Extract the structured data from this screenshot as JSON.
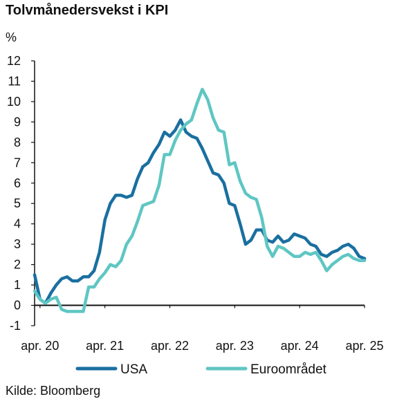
{
  "chart_data": {
    "type": "line",
    "title": "Tolvmånedersvekst i KPI",
    "ylabel": "%",
    "source": "Kilde: Bloomberg",
    "ylim": [
      -1,
      12
    ],
    "yticks": [
      "-1",
      "0",
      "1",
      "2",
      "3",
      "4",
      "5",
      "6",
      "7",
      "8",
      "9",
      "10",
      "11",
      "12"
    ],
    "xticks": [
      "apr. 20",
      "apr. 21",
      "apr. 22",
      "apr. 23",
      "apr. 24",
      "apr. 25"
    ],
    "xlim": [
      "2020-03",
      "2025-04"
    ],
    "grid": false,
    "legend_position": "bottom",
    "colors": {
      "USA": "#1a6fa0",
      "Euroområdet": "#5fc6c3",
      "axis": "#111111"
    },
    "series": [
      {
        "name": "USA",
        "x": [
          "2020-03",
          "2020-04",
          "2020-05",
          "2020-06",
          "2020-07",
          "2020-08",
          "2020-09",
          "2020-10",
          "2020-11",
          "2020-12",
          "2021-01",
          "2021-02",
          "2021-03",
          "2021-04",
          "2021-05",
          "2021-06",
          "2021-07",
          "2021-08",
          "2021-09",
          "2021-10",
          "2021-11",
          "2021-12",
          "2022-01",
          "2022-02",
          "2022-03",
          "2022-04",
          "2022-05",
          "2022-06",
          "2022-07",
          "2022-08",
          "2022-09",
          "2022-10",
          "2022-11",
          "2022-12",
          "2023-01",
          "2023-02",
          "2023-03",
          "2023-04",
          "2023-05",
          "2023-06",
          "2023-07",
          "2023-08",
          "2023-09",
          "2023-10",
          "2023-11",
          "2023-12",
          "2024-01",
          "2024-02",
          "2024-03",
          "2024-04",
          "2024-05",
          "2024-06",
          "2024-07",
          "2024-08",
          "2024-09",
          "2024-10",
          "2024-11",
          "2024-12",
          "2025-01",
          "2025-02",
          "2025-03",
          "2025-04"
        ],
        "y": [
          1.5,
          0.3,
          0.1,
          0.6,
          1.0,
          1.3,
          1.4,
          1.2,
          1.2,
          1.4,
          1.4,
          1.7,
          2.6,
          4.2,
          5.0,
          5.4,
          5.4,
          5.3,
          5.4,
          6.2,
          6.8,
          7.0,
          7.5,
          7.9,
          8.5,
          8.3,
          8.6,
          9.1,
          8.5,
          8.3,
          8.2,
          7.7,
          7.1,
          6.5,
          6.4,
          6.0,
          5.0,
          4.9,
          4.0,
          3.0,
          3.2,
          3.7,
          3.7,
          3.2,
          3.1,
          3.4,
          3.1,
          3.2,
          3.5,
          3.4,
          3.3,
          3.0,
          2.9,
          2.5,
          2.4,
          2.6,
          2.7,
          2.9,
          3.0,
          2.8,
          2.4,
          2.3
        ]
      },
      {
        "name": "Euroområdet",
        "x": [
          "2020-03",
          "2020-04",
          "2020-05",
          "2020-06",
          "2020-07",
          "2020-08",
          "2020-09",
          "2020-10",
          "2020-11",
          "2020-12",
          "2021-01",
          "2021-02",
          "2021-03",
          "2021-04",
          "2021-05",
          "2021-06",
          "2021-07",
          "2021-08",
          "2021-09",
          "2021-10",
          "2021-11",
          "2021-12",
          "2022-01",
          "2022-02",
          "2022-03",
          "2022-04",
          "2022-05",
          "2022-06",
          "2022-07",
          "2022-08",
          "2022-09",
          "2022-10",
          "2022-11",
          "2022-12",
          "2023-01",
          "2023-02",
          "2023-03",
          "2023-04",
          "2023-05",
          "2023-06",
          "2023-07",
          "2023-08",
          "2023-09",
          "2023-10",
          "2023-11",
          "2023-12",
          "2024-01",
          "2024-02",
          "2024-03",
          "2024-04",
          "2024-05",
          "2024-06",
          "2024-07",
          "2024-08",
          "2024-09",
          "2024-10",
          "2024-11",
          "2024-12",
          "2025-01",
          "2025-02",
          "2025-03",
          "2025-04"
        ],
        "y": [
          0.7,
          0.3,
          0.1,
          0.3,
          0.4,
          -0.2,
          -0.3,
          -0.3,
          -0.3,
          -0.3,
          0.9,
          0.9,
          1.3,
          1.6,
          2.0,
          1.9,
          2.2,
          3.0,
          3.4,
          4.1,
          4.9,
          5.0,
          5.1,
          5.9,
          7.4,
          7.4,
          8.1,
          8.6,
          8.9,
          9.1,
          9.9,
          10.6,
          10.1,
          9.2,
          8.6,
          8.5,
          6.9,
          7.0,
          6.1,
          5.5,
          5.3,
          5.2,
          4.3,
          2.9,
          2.4,
          2.9,
          2.8,
          2.6,
          2.4,
          2.4,
          2.6,
          2.5,
          2.6,
          2.2,
          1.7,
          2.0,
          2.2,
          2.4,
          2.5,
          2.3,
          2.2,
          2.2
        ]
      }
    ]
  }
}
